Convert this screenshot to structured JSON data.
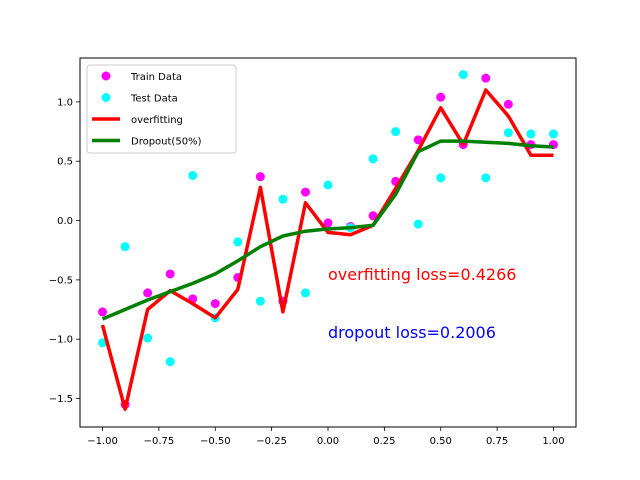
{
  "chart_data": {
    "type": "scatter",
    "xlim": [
      -1.1,
      1.1
    ],
    "ylim": [
      -1.74,
      1.37
    ],
    "grid": false,
    "legend_placement": "top-left",
    "xticks": [
      -1.0,
      -0.75,
      -0.5,
      -0.25,
      0.0,
      0.25,
      0.5,
      0.75,
      1.0
    ],
    "xtick_labels": [
      "−1.00",
      "−0.75",
      "−0.50",
      "−0.25",
      "0.00",
      "0.25",
      "0.50",
      "0.75",
      "1.00"
    ],
    "yticks": [
      -1.5,
      -1.0,
      -0.5,
      0.0,
      0.5,
      1.0
    ],
    "ytick_labels": [
      "−1.5",
      "−1.0",
      "−0.5",
      "0.0",
      "0.5",
      "1.0"
    ],
    "series": [
      {
        "name": "Train Data",
        "kind": "scatter",
        "color": "#ff00ff",
        "x": [
          -1.0,
          -0.9,
          -0.8,
          -0.7,
          -0.6,
          -0.5,
          -0.4,
          -0.3,
          -0.2,
          -0.1,
          0.0,
          0.1,
          0.2,
          0.3,
          0.4,
          0.5,
          0.6,
          0.7,
          0.8,
          0.9,
          1.0
        ],
        "y": [
          -0.77,
          -1.55,
          -0.61,
          -0.45,
          -0.66,
          -0.7,
          -0.48,
          0.37,
          -0.68,
          0.24,
          -0.02,
          -0.05,
          0.04,
          0.33,
          0.68,
          1.04,
          0.64,
          1.2,
          0.98,
          0.64,
          0.64
        ]
      },
      {
        "name": "Test Data",
        "kind": "scatter",
        "color": "#00ffff",
        "x": [
          -1.0,
          -0.9,
          -0.8,
          -0.7,
          -0.6,
          -0.5,
          -0.4,
          -0.3,
          -0.2,
          -0.1,
          0.0,
          0.1,
          0.2,
          0.3,
          0.4,
          0.5,
          0.6,
          0.7,
          0.8,
          0.9,
          1.0
        ],
        "y": [
          -1.03,
          -0.22,
          -0.99,
          -1.19,
          0.38,
          -0.82,
          -0.18,
          -0.68,
          0.18,
          -0.61,
          0.3,
          -0.06,
          0.52,
          0.75,
          -0.03,
          0.36,
          1.23,
          0.36,
          0.74,
          0.73,
          0.73
        ]
      },
      {
        "name": "overfitting",
        "kind": "line",
        "color": "#ff0000",
        "x": [
          -1.0,
          -0.9,
          -0.8,
          -0.7,
          -0.6,
          -0.5,
          -0.4,
          -0.3,
          -0.2,
          -0.1,
          0.0,
          0.1,
          0.2,
          0.3,
          0.4,
          0.5,
          0.6,
          0.7,
          0.8,
          0.9,
          1.0
        ],
        "y": [
          -0.88,
          -1.59,
          -0.75,
          -0.59,
          -0.7,
          -0.82,
          -0.58,
          0.28,
          -0.77,
          0.15,
          -0.1,
          -0.12,
          -0.04,
          0.27,
          0.59,
          0.95,
          0.64,
          1.1,
          0.88,
          0.55,
          0.55
        ]
      },
      {
        "name": "Dropout(50%)",
        "kind": "line",
        "color": "#008000",
        "x": [
          -1.0,
          -0.9,
          -0.8,
          -0.7,
          -0.6,
          -0.5,
          -0.4,
          -0.3,
          -0.2,
          -0.1,
          0.0,
          0.1,
          0.2,
          0.3,
          0.4,
          0.5,
          0.6,
          0.7,
          0.8,
          0.9,
          1.0
        ],
        "y": [
          -0.83,
          -0.75,
          -0.67,
          -0.6,
          -0.53,
          -0.45,
          -0.34,
          -0.22,
          -0.13,
          -0.09,
          -0.07,
          -0.06,
          -0.04,
          0.22,
          0.58,
          0.67,
          0.67,
          0.66,
          0.65,
          0.63,
          0.62
        ]
      }
    ],
    "annotations": [
      {
        "text": "overfitting loss=0.4266",
        "x": 0.0,
        "y": -0.45,
        "color": "#ff0000"
      },
      {
        "text": "dropout loss=0.2006",
        "x": 0.0,
        "y": -0.94,
        "color": "#0000ff"
      }
    ]
  }
}
